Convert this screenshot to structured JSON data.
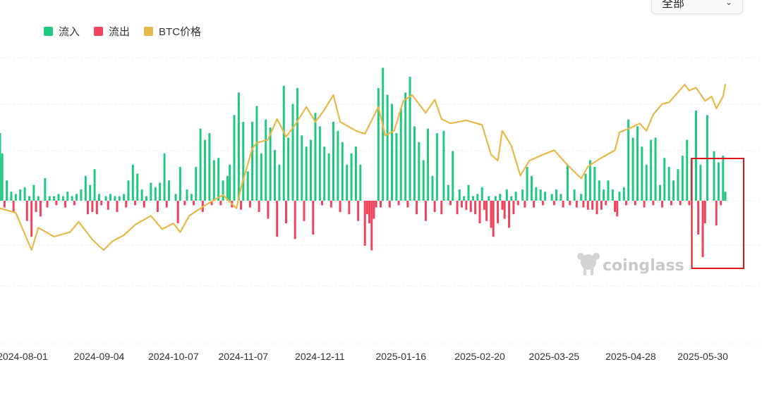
{
  "legend": [
    {
      "label": "流入",
      "color": "#1fc97f"
    },
    {
      "label": "流出",
      "color": "#f0435e"
    },
    {
      "label": "BTC价格",
      "color": "#e8b84a"
    }
  ],
  "dropdown": {
    "label": "全部",
    "icon": "chevron-down-icon"
  },
  "watermark": {
    "text": "coinglass"
  },
  "colors": {
    "inflow": "#1fc97f",
    "outflow": "#f0435e",
    "price": "#e8b84a",
    "highlight": "#e0151b",
    "grid": "#ececec"
  },
  "chart_data": {
    "type": "bar",
    "series_types": {
      "流入": "bar",
      "流出": "bar",
      "BTC价格": "line"
    },
    "x_tick_labels": [
      "2024-08-01",
      "2024-09-04",
      "2024-10-07",
      "2024-11-07",
      "2024-12-11",
      "2025-01-16",
      "2025-02-20",
      "2025-03-25",
      "2025-04-28",
      "2025-05-30"
    ],
    "x_start": "2024-07-22",
    "x_end": "2025-06-09",
    "y_grid": true,
    "legend_position": "top-left",
    "highlight_region": {
      "from": "2025-05-27",
      "to": "2025-06-09"
    },
    "inflow": [
      [
        "2024-07-22",
        60
      ],
      [
        "2024-07-23",
        42
      ],
      [
        "2024-07-25",
        18
      ],
      [
        "2024-07-27",
        8
      ],
      [
        "2024-07-29",
        6
      ],
      [
        "2024-07-31",
        10
      ],
      [
        "2024-08-02",
        12
      ],
      [
        "2024-08-04",
        4
      ],
      [
        "2024-08-06",
        14
      ],
      [
        "2024-08-08",
        4
      ],
      [
        "2024-08-11",
        20
      ],
      [
        "2024-08-13",
        4
      ],
      [
        "2024-08-15",
        4
      ],
      [
        "2024-08-17",
        6
      ],
      [
        "2024-08-19",
        4
      ],
      [
        "2024-08-21",
        8
      ],
      [
        "2024-08-23",
        4
      ],
      [
        "2024-08-25",
        6
      ],
      [
        "2024-08-27",
        10
      ],
      [
        "2024-08-29",
        22
      ],
      [
        "2024-08-31",
        14
      ],
      [
        "2024-09-02",
        28
      ],
      [
        "2024-09-04",
        6
      ],
      [
        "2024-09-07",
        4
      ],
      [
        "2024-09-09",
        6
      ],
      [
        "2024-09-11",
        4
      ],
      [
        "2024-09-13",
        4
      ],
      [
        "2024-09-15",
        6
      ],
      [
        "2024-09-17",
        18
      ],
      [
        "2024-09-19",
        32
      ],
      [
        "2024-09-21",
        24
      ],
      [
        "2024-09-23",
        10
      ],
      [
        "2024-09-25",
        4
      ],
      [
        "2024-09-27",
        16
      ],
      [
        "2024-09-29",
        12
      ],
      [
        "2024-10-01",
        16
      ],
      [
        "2024-10-03",
        42
      ],
      [
        "2024-10-05",
        18
      ],
      [
        "2024-10-08",
        6
      ],
      [
        "2024-10-10",
        30
      ],
      [
        "2024-10-13",
        10
      ],
      [
        "2024-10-15",
        6
      ],
      [
        "2024-10-17",
        30
      ],
      [
        "2024-10-19",
        64
      ],
      [
        "2024-10-21",
        54
      ],
      [
        "2024-10-23",
        60
      ],
      [
        "2024-10-25",
        36
      ],
      [
        "2024-10-27",
        38
      ],
      [
        "2024-10-29",
        18
      ],
      [
        "2024-10-31",
        22
      ],
      [
        "2024-11-01",
        32
      ],
      [
        "2024-11-03",
        76
      ],
      [
        "2024-11-05",
        96
      ],
      [
        "2024-11-07",
        70
      ],
      [
        "2024-11-09",
        26
      ],
      [
        "2024-11-11",
        70
      ],
      [
        "2024-11-13",
        84
      ],
      [
        "2024-11-15",
        42
      ],
      [
        "2024-11-17",
        72
      ],
      [
        "2024-11-19",
        65
      ],
      [
        "2024-11-21",
        45
      ],
      [
        "2024-11-23",
        32
      ],
      [
        "2024-11-25",
        102
      ],
      [
        "2024-11-27",
        56
      ],
      [
        "2024-11-29",
        86
      ],
      [
        "2024-12-01",
        100
      ],
      [
        "2024-12-03",
        58
      ],
      [
        "2024-12-05",
        48
      ],
      [
        "2024-12-07",
        54
      ],
      [
        "2024-12-09",
        78
      ],
      [
        "2024-12-11",
        66
      ],
      [
        "2024-12-13",
        48
      ],
      [
        "2024-12-15",
        42
      ],
      [
        "2024-12-17",
        70
      ],
      [
        "2024-12-19",
        62
      ],
      [
        "2024-12-21",
        52
      ],
      [
        "2024-12-23",
        32
      ],
      [
        "2024-12-25",
        42
      ],
      [
        "2024-12-27",
        48
      ],
      [
        "2024-12-29",
        32
      ],
      [
        "2025-01-06",
        100
      ],
      [
        "2025-01-08",
        118
      ],
      [
        "2025-01-10",
        94
      ],
      [
        "2025-01-12",
        86
      ],
      [
        "2025-01-14",
        60
      ],
      [
        "2025-01-16",
        82
      ],
      [
        "2025-01-18",
        96
      ],
      [
        "2025-01-20",
        110
      ],
      [
        "2025-01-22",
        66
      ],
      [
        "2025-01-24",
        52
      ],
      [
        "2025-01-26",
        36
      ],
      [
        "2025-01-28",
        64
      ],
      [
        "2025-01-30",
        22
      ],
      [
        "2025-02-01",
        60
      ],
      [
        "2025-02-04",
        62
      ],
      [
        "2025-02-06",
        14
      ],
      [
        "2025-02-08",
        44
      ],
      [
        "2025-02-11",
        10
      ],
      [
        "2025-02-13",
        4
      ],
      [
        "2025-02-15",
        14
      ],
      [
        "2025-02-17",
        4
      ],
      [
        "2025-02-19",
        6
      ],
      [
        "2025-02-21",
        12
      ],
      [
        "2025-02-24",
        4
      ],
      [
        "2025-02-27",
        4
      ],
      [
        "2025-03-01",
        6
      ],
      [
        "2025-03-04",
        10
      ],
      [
        "2025-03-06",
        4
      ],
      [
        "2025-03-08",
        8
      ],
      [
        "2025-03-11",
        10
      ],
      [
        "2025-03-13",
        30
      ],
      [
        "2025-03-15",
        22
      ],
      [
        "2025-03-17",
        12
      ],
      [
        "2025-03-19",
        10
      ],
      [
        "2025-03-21",
        8
      ],
      [
        "2025-03-24",
        6
      ],
      [
        "2025-03-26",
        10
      ],
      [
        "2025-03-28",
        6
      ],
      [
        "2025-03-31",
        32
      ],
      [
        "2025-04-03",
        10
      ],
      [
        "2025-04-06",
        6
      ],
      [
        "2025-04-08",
        24
      ],
      [
        "2025-04-10",
        36
      ],
      [
        "2025-04-12",
        30
      ],
      [
        "2025-04-14",
        18
      ],
      [
        "2025-04-16",
        10
      ],
      [
        "2025-04-18",
        18
      ],
      [
        "2025-04-20",
        10
      ],
      [
        "2025-04-23",
        8
      ],
      [
        "2025-04-25",
        12
      ],
      [
        "2025-04-27",
        72
      ],
      [
        "2025-04-29",
        56
      ],
      [
        "2025-05-01",
        66
      ],
      [
        "2025-05-03",
        48
      ],
      [
        "2025-05-05",
        32
      ],
      [
        "2025-05-07",
        54
      ],
      [
        "2025-05-09",
        56
      ],
      [
        "2025-05-11",
        14
      ],
      [
        "2025-05-13",
        38
      ],
      [
        "2025-05-15",
        30
      ],
      [
        "2025-05-17",
        18
      ],
      [
        "2025-05-19",
        28
      ],
      [
        "2025-05-21",
        40
      ],
      [
        "2025-05-23",
        54
      ],
      [
        "2025-05-25",
        38
      ],
      [
        "2025-05-27",
        80
      ],
      [
        "2025-05-29",
        32
      ],
      [
        "2025-06-01",
        76
      ],
      [
        "2025-06-04",
        44
      ],
      [
        "2025-06-06",
        34
      ],
      [
        "2025-06-08",
        40
      ],
      [
        "2025-06-09",
        8
      ]
    ],
    "outflow": [
      [
        "2024-07-24",
        -6
      ],
      [
        "2024-07-28",
        -10
      ],
      [
        "2024-08-03",
        -18
      ],
      [
        "2024-08-05",
        -32
      ],
      [
        "2024-08-07",
        -10
      ],
      [
        "2024-08-09",
        -14
      ],
      [
        "2024-08-12",
        -6
      ],
      [
        "2024-08-16",
        -4
      ],
      [
        "2024-08-20",
        -6
      ],
      [
        "2024-08-24",
        -4
      ],
      [
        "2024-08-30",
        -12
      ],
      [
        "2024-09-01",
        -10
      ],
      [
        "2024-09-03",
        -12
      ],
      [
        "2024-09-05",
        -4
      ],
      [
        "2024-09-08",
        -8
      ],
      [
        "2024-09-12",
        -10
      ],
      [
        "2024-09-16",
        -6
      ],
      [
        "2024-09-20",
        -4
      ],
      [
        "2024-09-24",
        -6
      ],
      [
        "2024-09-30",
        -10
      ],
      [
        "2024-10-04",
        -6
      ],
      [
        "2024-10-09",
        -20
      ],
      [
        "2024-10-12",
        -4
      ],
      [
        "2024-10-16",
        -4
      ],
      [
        "2024-10-20",
        -10
      ],
      [
        "2024-10-24",
        -4
      ],
      [
        "2024-10-28",
        -4
      ],
      [
        "2024-11-02",
        -6
      ],
      [
        "2024-11-06",
        -8
      ],
      [
        "2024-11-10",
        -6
      ],
      [
        "2024-11-14",
        -10
      ],
      [
        "2024-11-18",
        -16
      ],
      [
        "2024-11-22",
        -32
      ],
      [
        "2024-11-26",
        -20
      ],
      [
        "2024-11-30",
        -34
      ],
      [
        "2024-12-04",
        -18
      ],
      [
        "2024-12-08",
        -30
      ],
      [
        "2024-12-12",
        -4
      ],
      [
        "2024-12-16",
        -6
      ],
      [
        "2024-12-20",
        -10
      ],
      [
        "2024-12-24",
        -12
      ],
      [
        "2024-12-28",
        -18
      ],
      [
        "2024-12-31",
        -40
      ],
      [
        "2025-01-01",
        -12
      ],
      [
        "2025-01-02",
        -20
      ],
      [
        "2025-01-03",
        -44
      ],
      [
        "2025-01-04",
        -16
      ],
      [
        "2025-01-05",
        -6
      ],
      [
        "2025-01-07",
        -6
      ],
      [
        "2025-01-11",
        -6
      ],
      [
        "2025-01-15",
        -4
      ],
      [
        "2025-01-19",
        -6
      ],
      [
        "2025-01-23",
        -12
      ],
      [
        "2025-01-27",
        -18
      ],
      [
        "2025-01-31",
        -10
      ],
      [
        "2025-02-03",
        -12
      ],
      [
        "2025-02-07",
        -4
      ],
      [
        "2025-02-10",
        -12
      ],
      [
        "2025-02-12",
        -6
      ],
      [
        "2025-02-14",
        -8
      ],
      [
        "2025-02-16",
        -10
      ],
      [
        "2025-02-18",
        -12
      ],
      [
        "2025-02-20",
        -20
      ],
      [
        "2025-02-22",
        -8
      ],
      [
        "2025-02-23",
        -18
      ],
      [
        "2025-02-25",
        -24
      ],
      [
        "2025-02-26",
        -32
      ],
      [
        "2025-02-28",
        -20
      ],
      [
        "2025-03-02",
        -8
      ],
      [
        "2025-03-03",
        -16
      ],
      [
        "2025-03-05",
        -24
      ],
      [
        "2025-03-07",
        -12
      ],
      [
        "2025-03-09",
        -4
      ],
      [
        "2025-03-12",
        -6
      ],
      [
        "2025-03-16",
        -6
      ],
      [
        "2025-03-20",
        -4
      ],
      [
        "2025-03-25",
        -4
      ],
      [
        "2025-03-29",
        -6
      ],
      [
        "2025-04-01",
        -4
      ],
      [
        "2025-04-04",
        -6
      ],
      [
        "2025-04-07",
        -6
      ],
      [
        "2025-04-09",
        -8
      ],
      [
        "2025-04-11",
        -8
      ],
      [
        "2025-04-13",
        -12
      ],
      [
        "2025-04-15",
        -8
      ],
      [
        "2025-04-17",
        -4
      ],
      [
        "2025-04-21",
        -10
      ],
      [
        "2025-04-22",
        -14
      ],
      [
        "2025-04-26",
        -4
      ],
      [
        "2025-04-30",
        -4
      ],
      [
        "2025-05-04",
        -6
      ],
      [
        "2025-05-08",
        -4
      ],
      [
        "2025-05-12",
        -6
      ],
      [
        "2025-05-16",
        -4
      ],
      [
        "2025-05-20",
        -4
      ],
      [
        "2025-05-24",
        -4
      ],
      [
        "2025-05-28",
        -30
      ],
      [
        "2025-05-30",
        -50
      ],
      [
        "2025-05-31",
        -20
      ],
      [
        "2025-06-05",
        -22
      ],
      [
        "2025-06-07",
        -4
      ]
    ],
    "btc_price": [
      [
        "2024-07-22",
        68000
      ],
      [
        "2024-07-29",
        66500
      ],
      [
        "2024-08-05",
        54000
      ],
      [
        "2024-08-08",
        61500
      ],
      [
        "2024-08-15",
        58500
      ],
      [
        "2024-08-22",
        60000
      ],
      [
        "2024-08-26",
        63500
      ],
      [
        "2024-09-01",
        57500
      ],
      [
        "2024-09-06",
        54000
      ],
      [
        "2024-09-10",
        57000
      ],
      [
        "2024-09-15",
        59000
      ],
      [
        "2024-09-20",
        62500
      ],
      [
        "2024-09-27",
        65500
      ],
      [
        "2024-10-02",
        61000
      ],
      [
        "2024-10-07",
        63000
      ],
      [
        "2024-10-10",
        60000
      ],
      [
        "2024-10-14",
        65500
      ],
      [
        "2024-10-21",
        69000
      ],
      [
        "2024-10-29",
        72500
      ],
      [
        "2024-11-04",
        68000
      ],
      [
        "2024-11-06",
        75000
      ],
      [
        "2024-11-11",
        88000
      ],
      [
        "2024-11-13",
        90000
      ],
      [
        "2024-11-18",
        91000
      ],
      [
        "2024-11-22",
        98000
      ],
      [
        "2024-11-26",
        92000
      ],
      [
        "2024-11-30",
        96000
      ],
      [
        "2024-12-05",
        102000
      ],
      [
        "2024-12-09",
        97000
      ],
      [
        "2024-12-13",
        101000
      ],
      [
        "2024-12-17",
        106000
      ],
      [
        "2024-12-20",
        97000
      ],
      [
        "2024-12-27",
        94000
      ],
      [
        "2024-12-31",
        93000
      ],
      [
        "2025-01-06",
        102000
      ],
      [
        "2025-01-09",
        92500
      ],
      [
        "2025-01-13",
        94000
      ],
      [
        "2025-01-17",
        104000
      ],
      [
        "2025-01-21",
        106000
      ],
      [
        "2025-01-27",
        100000
      ],
      [
        "2025-01-31",
        104500
      ],
      [
        "2025-02-03",
        98000
      ],
      [
        "2025-02-07",
        96500
      ],
      [
        "2025-02-14",
        97500
      ],
      [
        "2025-02-21",
        96000
      ],
      [
        "2025-02-25",
        86000
      ],
      [
        "2025-02-28",
        84000
      ],
      [
        "2025-03-02",
        94000
      ],
      [
        "2025-03-06",
        89000
      ],
      [
        "2025-03-10",
        79000
      ],
      [
        "2025-03-14",
        84000
      ],
      [
        "2025-03-20",
        86000
      ],
      [
        "2025-03-25",
        87500
      ],
      [
        "2025-03-31",
        82500
      ],
      [
        "2025-04-06",
        78000
      ],
      [
        "2025-04-09",
        82000
      ],
      [
        "2025-04-14",
        84500
      ],
      [
        "2025-04-21",
        87500
      ],
      [
        "2025-04-23",
        93500
      ],
      [
        "2025-04-28",
        95000
      ],
      [
        "2025-05-02",
        96500
      ],
      [
        "2025-05-05",
        94000
      ],
      [
        "2025-05-08",
        99500
      ],
      [
        "2025-05-12",
        103000
      ],
      [
        "2025-05-15",
        103500
      ],
      [
        "2025-05-22",
        109500
      ],
      [
        "2025-05-24",
        107500
      ],
      [
        "2025-05-27",
        108500
      ],
      [
        "2025-05-31",
        104000
      ],
      [
        "2025-06-03",
        105500
      ],
      [
        "2025-06-05",
        101500
      ],
      [
        "2025-06-08",
        105500
      ],
      [
        "2025-06-09",
        109500
      ]
    ]
  }
}
